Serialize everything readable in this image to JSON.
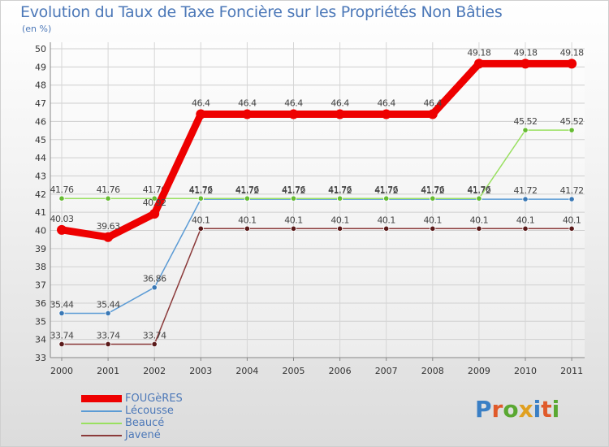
{
  "title": "Evolution du Taux de Taxe Foncière sur les Propriétés Non Bâties",
  "unit_label": "(en %)",
  "logo": {
    "text": "Proxiti",
    "colors": [
      "#3a7fc5",
      "#e05a2a",
      "#5aa832",
      "#e0a020",
      "#3a7fc5",
      "#e05a2a",
      "#5aa832"
    ]
  },
  "chart_data": {
    "type": "line",
    "title": "Evolution du Taux de Taxe Foncière sur les Propriétés Non Bâties",
    "xlabel": "",
    "ylabel": "(en %)",
    "x": [
      "2000",
      "2001",
      "2002",
      "2003",
      "2004",
      "2005",
      "2006",
      "2007",
      "2008",
      "2009",
      "2010",
      "2011"
    ],
    "ylim": [
      33,
      50
    ],
    "yticks": [
      33,
      34,
      35,
      36,
      37,
      38,
      39,
      40,
      41,
      42,
      43,
      44,
      45,
      46,
      47,
      48,
      49,
      50
    ],
    "grid": true,
    "legend_position": "bottom-left",
    "series": [
      {
        "name": "FOUGèRES",
        "color": "#ee0000",
        "emphasis": "thick",
        "values": [
          40.03,
          39.63,
          40.92,
          46.4,
          46.4,
          46.4,
          46.4,
          46.4,
          46.4,
          49.18,
          49.18,
          49.18
        ],
        "labels": [
          "40.03",
          "39.63",
          "40.92",
          "46.4",
          "46.4",
          "46.4",
          "46.4",
          "46.4",
          "46.4",
          "49.18",
          "49.18",
          "49.18"
        ]
      },
      {
        "name": "Lécousse",
        "color": "#5b9bd5",
        "point_color": "#3a78b5",
        "emphasis": "thin",
        "values": [
          35.44,
          35.44,
          36.86,
          41.72,
          41.72,
          41.72,
          41.72,
          41.72,
          41.72,
          41.72,
          41.72,
          41.72
        ],
        "labels": [
          "35.44",
          "35.44",
          "36.86",
          "41.72",
          "41.72",
          "41.72",
          "41.72",
          "41.72",
          "41.72",
          "41.72",
          "41.72",
          "41.72"
        ]
      },
      {
        "name": "Beaucé",
        "color": "#99e060",
        "point_color": "#66bb33",
        "emphasis": "thin",
        "values": [
          41.76,
          41.76,
          41.76,
          41.76,
          41.76,
          41.76,
          41.76,
          41.76,
          41.76,
          41.76,
          45.52,
          45.52
        ],
        "labels": [
          "41.76",
          "41.76",
          "41.76",
          "41.76",
          "41.76",
          "41.76",
          "41.76",
          "41.76",
          "41.76",
          "41.76",
          "45.52",
          "45.52"
        ]
      },
      {
        "name": "Javené",
        "color": "#8b3a3a",
        "point_color": "#5a1a1a",
        "emphasis": "thin",
        "values": [
          33.74,
          33.74,
          33.74,
          40.1,
          40.1,
          40.1,
          40.1,
          40.1,
          40.1,
          40.1,
          40.1,
          40.1
        ],
        "labels": [
          "33.74",
          "33.74",
          "33.74",
          "40.1",
          "40.1",
          "40.1",
          "40.1",
          "40.1",
          "40.1",
          "40.1",
          "40.1",
          "40.1"
        ]
      }
    ]
  }
}
